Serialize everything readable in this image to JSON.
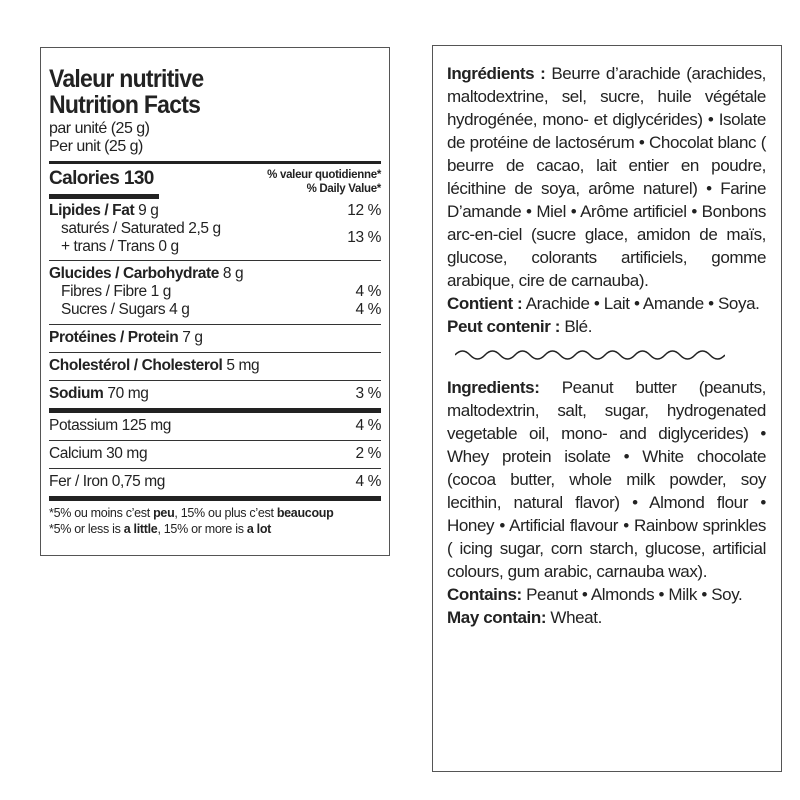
{
  "nutrition": {
    "title_fr": "Valeur nutritive",
    "title_en": "Nutrition Facts",
    "serving_fr": "par unité (25 g)",
    "serving_en": "Per unit (25 g)",
    "calories_label": "Calories 130",
    "dv_fr": "% valeur quotidienne*",
    "dv_en": "% Daily Value*",
    "fat": {
      "label": "Lipides / Fat",
      "amount": " 9 g",
      "dv": "12 %"
    },
    "saturated": "saturés / Saturated 2,5 g",
    "trans": "+ trans / Trans 0 g",
    "sat_trans_dv": "13 %",
    "carb": {
      "label": "Glucides / Carbohydrate",
      "amount": " 8 g"
    },
    "fibre": {
      "label": "Fibres / Fibre 1 g",
      "dv": "4 %"
    },
    "sugars": {
      "label": "Sucres / Sugars 4 g",
      "dv": "4 %"
    },
    "protein": {
      "label": "Protéines / Protein",
      "amount": " 7 g"
    },
    "cholesterol": {
      "label": "Cholestérol / Cholesterol",
      "amount": " 5 mg"
    },
    "sodium": {
      "label": "Sodium",
      "amount": " 70 mg",
      "dv": "3 %"
    },
    "potassium": {
      "label": "Potassium 125 mg",
      "dv": "4 %"
    },
    "calcium": {
      "label": "Calcium 30 mg",
      "dv": "2 %"
    },
    "iron": {
      "label": "Fer / Iron 0,75 mg",
      "dv": "4 %"
    },
    "footnote_fr": [
      "*5% ou moins c’est ",
      "peu",
      ", 15% ou plus c’est ",
      "beaucoup"
    ],
    "footnote_en": [
      "*5% or less is ",
      "a little",
      ", 15% or more is ",
      "a lot"
    ]
  },
  "ingredients": {
    "fr_label": "Ingrédients :",
    "fr_text": " Beurre d’arachide (arachides, maltodextrine, sel, sucre, huile végétale hydrogénée, mono- et diglycérides) • Isolate de protéine de lactosérum • Chocolat blanc ( beurre de cacao, lait entier en poudre, lécithine de soya, arôme naturel) • Farine D’amande • Miel • Arôme artificiel • Bonbons arc-en-ciel (sucre glace, amidon de maïs, glucose, colorants artificiels, gomme arabique, cire de carnauba).",
    "fr_contains_label": "Contient :",
    "fr_contains": " Arachide • Lait • Amande • Soya. ",
    "fr_may_label": "Peut contenir :",
    "fr_may": " Blé.",
    "en_label": "Ingredients:",
    "en_text": " Peanut butter (peanuts, maltodextrin, salt, sugar, hydrogenated vegetable oil, mono- and diglycerides) • Whey protein isolate • White chocolate (cocoa butter, whole milk powder, soy lecithin, natural flavor) • Almond flour • Honey • Artificial flavour • Rainbow sprinkles ( icing sugar, corn starch, glucose, artificial colours, gum arabic, carnauba wax).",
    "en_contains_label": "Contains:",
    "en_contains": " Peanut • Almonds • Milk • Soy. ",
    "en_may_label": "May contain:",
    "en_may": " Wheat."
  }
}
